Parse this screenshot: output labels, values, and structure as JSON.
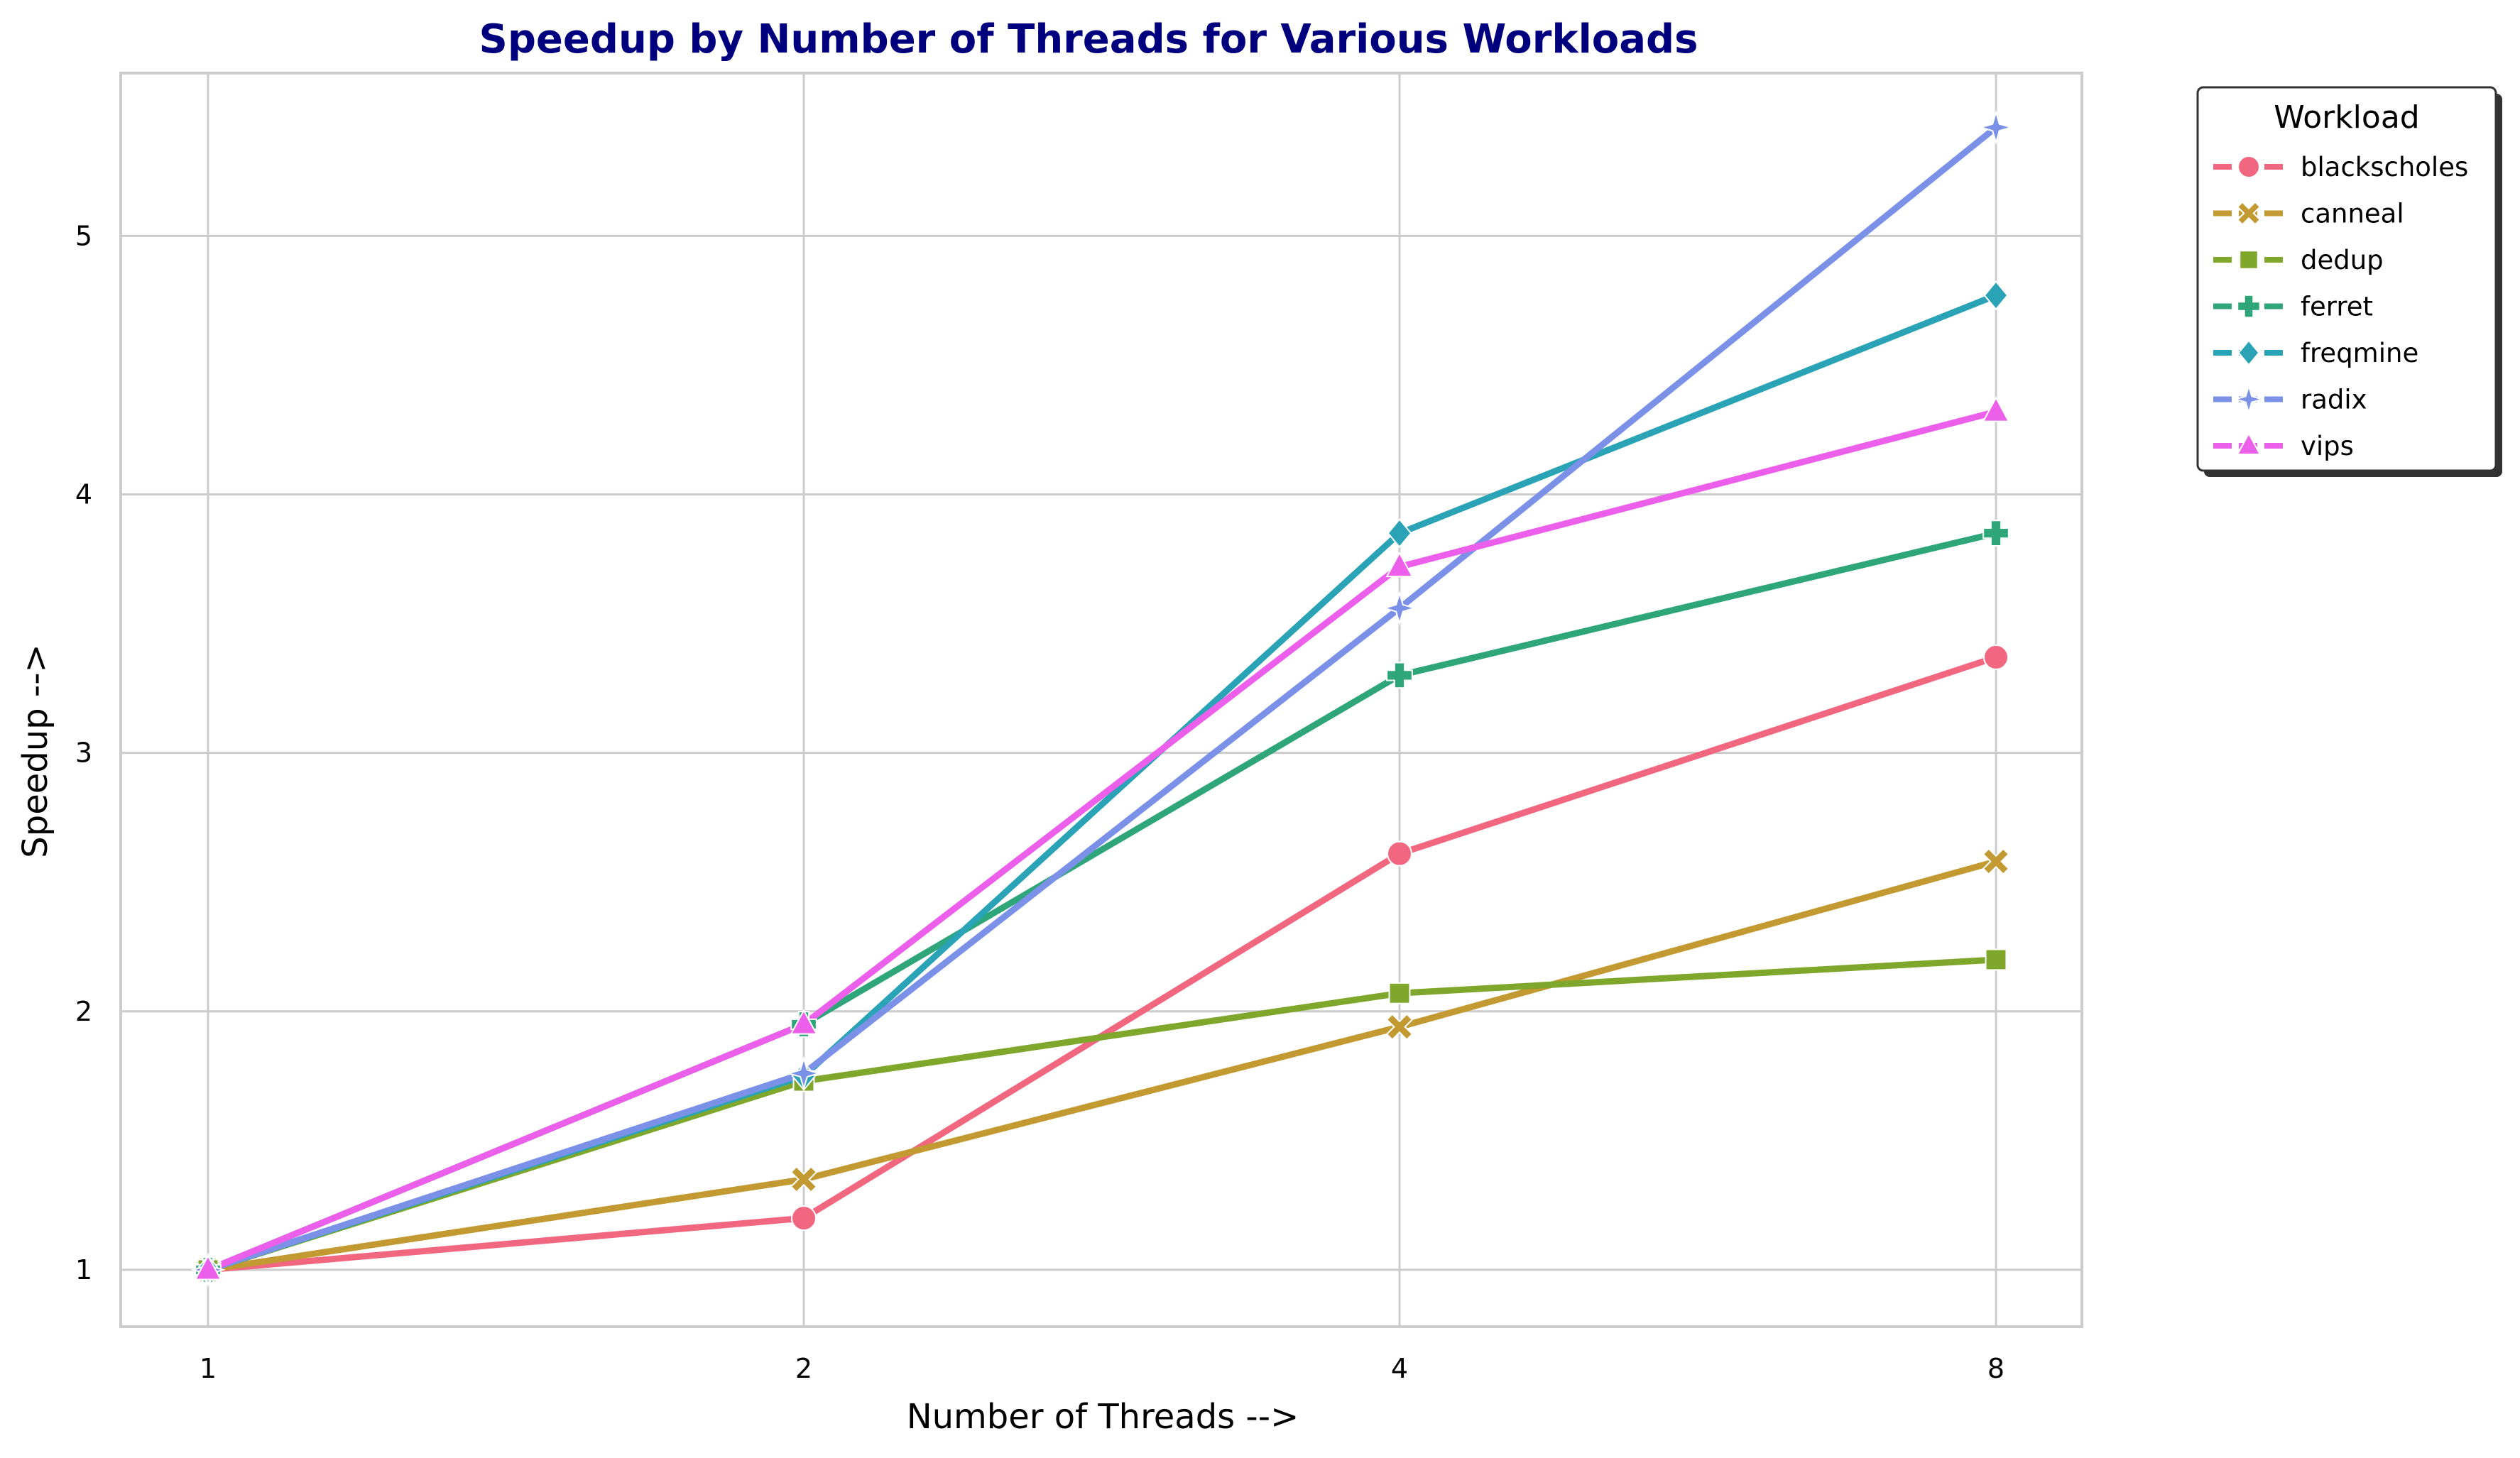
{
  "chart_data": {
    "type": "line",
    "title": "Speedup by Number of Threads for Various Workloads",
    "xlabel": "Number of Threads -->",
    "ylabel": "Speedup -->",
    "x": [
      1,
      2,
      4,
      8
    ],
    "x_ticks": [
      "1",
      "2",
      "4",
      "8"
    ],
    "x_scale": "log2",
    "y_ticks": [
      "1",
      "2",
      "3",
      "4",
      "5"
    ],
    "ylim": [
      0.78,
      5.63
    ],
    "grid": true,
    "legend": {
      "title": "Workload",
      "placement": "outside-top-right"
    },
    "series": [
      {
        "name": "blackscholes",
        "color": "#f0677f",
        "marker": "circle",
        "values": [
          1.0,
          1.2,
          2.61,
          3.37
        ]
      },
      {
        "name": "canneal",
        "color": "#c39a32",
        "marker": "x",
        "values": [
          1.0,
          1.35,
          1.94,
          2.58
        ]
      },
      {
        "name": "dedup",
        "color": "#7ea72c",
        "marker": "square",
        "values": [
          1.0,
          1.73,
          2.07,
          2.2
        ]
      },
      {
        "name": "ferret",
        "color": "#2ea67a",
        "marker": "plus",
        "values": [
          1.0,
          1.95,
          3.3,
          3.85
        ]
      },
      {
        "name": "freqmine",
        "color": "#2aa3b7",
        "marker": "diamond",
        "values": [
          1.0,
          1.75,
          3.85,
          4.77
        ]
      },
      {
        "name": "radix",
        "color": "#7b91e8",
        "marker": "star",
        "values": [
          1.0,
          1.76,
          3.56,
          5.42
        ]
      },
      {
        "name": "vips",
        "color": "#ec5fea",
        "marker": "triangle",
        "values": [
          1.0,
          1.95,
          3.72,
          4.32
        ]
      }
    ]
  }
}
